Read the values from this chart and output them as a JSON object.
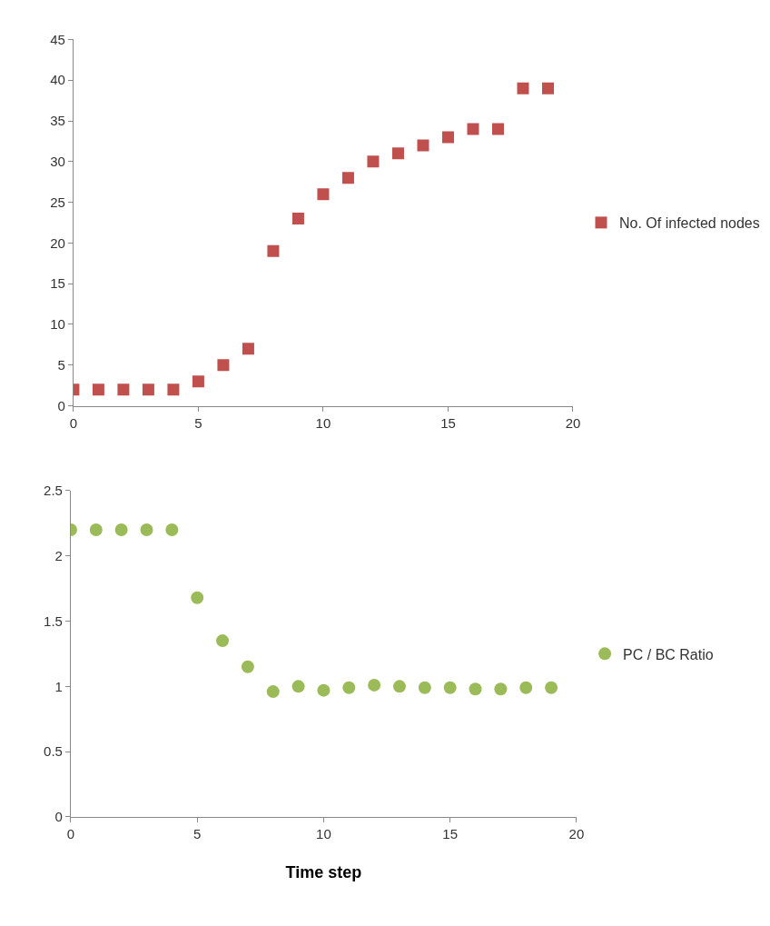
{
  "chart_data": [
    {
      "type": "scatter",
      "x": [
        0,
        1,
        2,
        3,
        4,
        5,
        6,
        7,
        8,
        9,
        10,
        11,
        12,
        13,
        14,
        15,
        16,
        17,
        18,
        19
      ],
      "xlim": [
        0,
        20
      ],
      "xticks": [
        0,
        5,
        10,
        15,
        20
      ],
      "ylim": [
        0,
        45
      ],
      "yticks": [
        0,
        5,
        10,
        15,
        20,
        25,
        30,
        35,
        40,
        45
      ],
      "marker": "square",
      "legend": "right",
      "grid": false,
      "series": [
        {
          "name": "No. Of infected nodes",
          "color": "#c0504d",
          "values": [
            2,
            2,
            2,
            2,
            2,
            3,
            5,
            7,
            19,
            23,
            26,
            28,
            30,
            31,
            32,
            33,
            34,
            34,
            39,
            39
          ]
        }
      ]
    },
    {
      "type": "scatter",
      "x": [
        0,
        1,
        2,
        3,
        4,
        5,
        6,
        7,
        8,
        9,
        10,
        11,
        12,
        13,
        14,
        15,
        16,
        17,
        18,
        19
      ],
      "xlim": [
        0,
        20
      ],
      "xticks": [
        0,
        5,
        10,
        15,
        20
      ],
      "ylim": [
        0,
        2.5
      ],
      "yticks": [
        0,
        0.5,
        1,
        1.5,
        2,
        2.5
      ],
      "marker": "circle",
      "legend": "right",
      "grid": false,
      "xlabel": "Time step",
      "series": [
        {
          "name": "PC / BC Ratio",
          "color": "#9bbb59",
          "values": [
            2.2,
            2.2,
            2.2,
            2.2,
            2.2,
            1.68,
            1.35,
            1.15,
            0.96,
            1.0,
            0.97,
            0.99,
            1.01,
            1.0,
            0.99,
            0.99,
            0.98,
            0.98,
            0.99,
            0.99
          ]
        }
      ]
    }
  ]
}
